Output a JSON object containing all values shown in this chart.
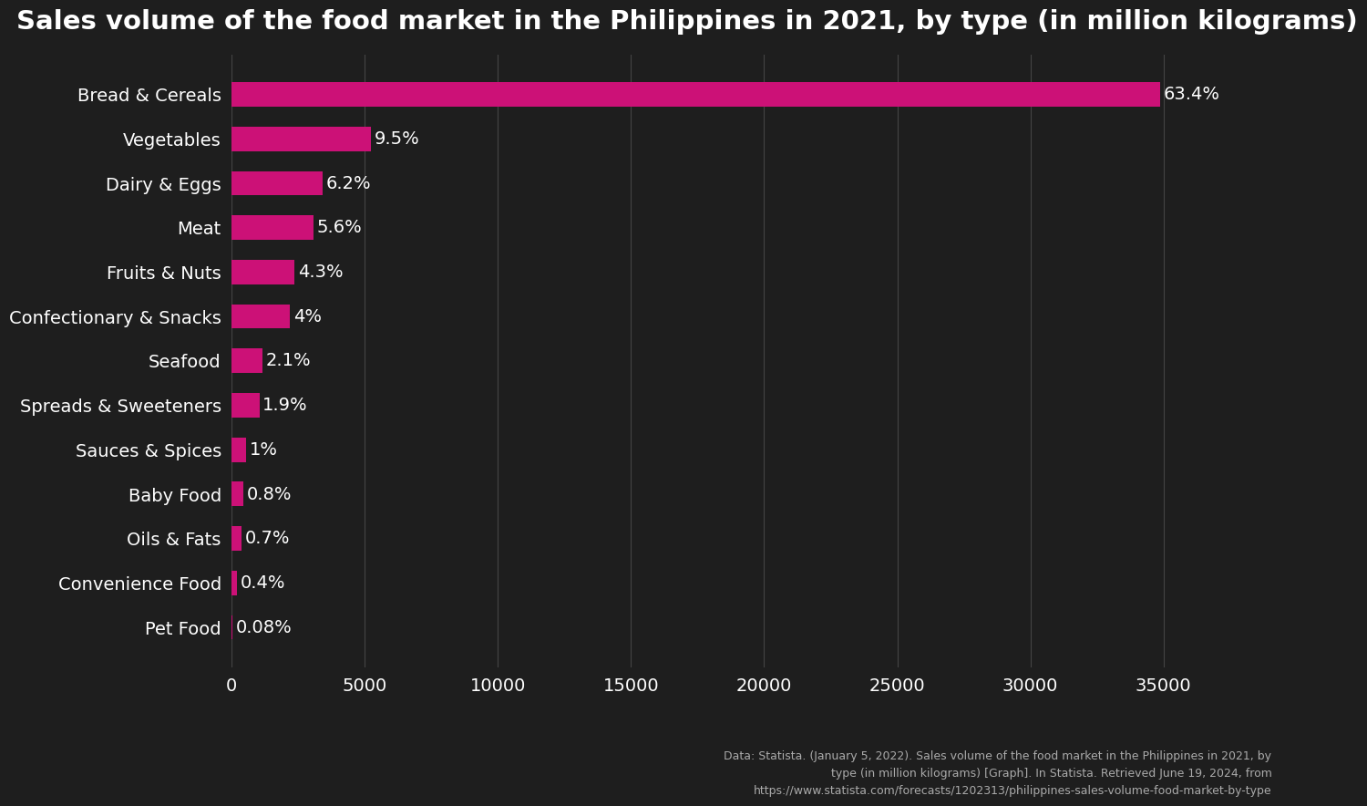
{
  "title": "Sales volume of the food market in the Philippines in 2021, by type (in million kilograms)",
  "categories": [
    "Pet Food",
    "Convenience Food",
    "Oils & Fats",
    "Baby Food",
    "Sauces & Spices",
    "Spreads & Sweeteners",
    "Seafood",
    "Confectionary & Snacks",
    "Fruits & Nuts",
    "Meat",
    "Dairy & Eggs",
    "Vegetables",
    "Bread & Cereals"
  ],
  "values": [
    44.1,
    220.2,
    385.2,
    440.3,
    550.3,
    1045.6,
    1155.7,
    2201.4,
    2366.5,
    3081.9,
    3412.2,
    5228.2,
    34874.2
  ],
  "labels": [
    "0.08%",
    "0.4%",
    "0.7%",
    "0.8%",
    "1%",
    "1.9%",
    "2.1%",
    "4%",
    "4.3%",
    "5.6%",
    "6.2%",
    "9.5%",
    "63.4%"
  ],
  "bar_color": "#cc1177",
  "background_color": "#1e1e1e",
  "text_color": "#ffffff",
  "title_fontsize": 21,
  "label_fontsize": 14,
  "tick_fontsize": 14,
  "xlim": [
    0,
    37500
  ],
  "xticks": [
    0,
    5000,
    10000,
    15000,
    20000,
    25000,
    30000,
    35000
  ],
  "footnote": "Data: Statista. (January 5, 2022). Sales volume of the food market in the Philippines in 2021, by\ntype (in million kilograms) [Graph]. In Statista. Retrieved June 19, 2024, from\nhttps://www.statista.com/forecasts/1202313/philippines-sales-volume-food-market-by-type"
}
